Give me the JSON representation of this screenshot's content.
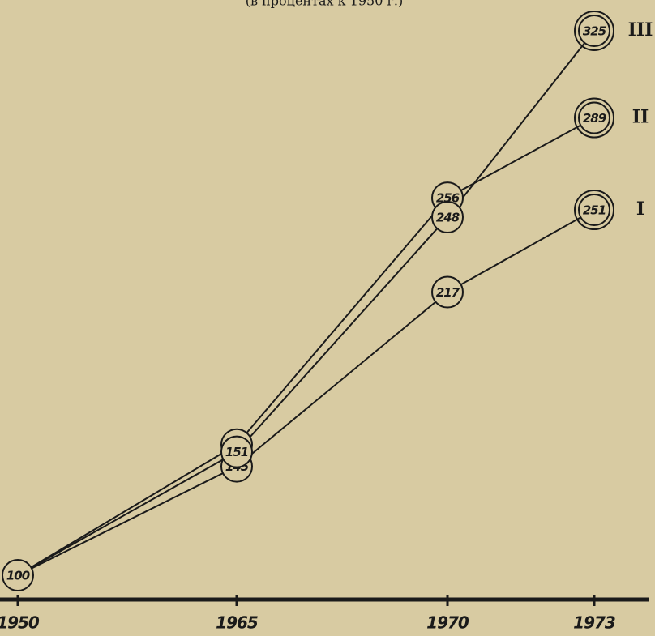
{
  "chart_data": {
    "type": "line",
    "subtitle": "(в процентах к 1950 г.)",
    "categories": [
      "1950",
      "1965",
      "1970",
      "1973"
    ],
    "series": [
      {
        "name": "I",
        "color": "#1a1a1a",
        "values": [
          100,
          145,
          217,
          251
        ]
      },
      {
        "name": "II",
        "color": "#1a1a1a",
        "values": [
          100,
          154,
          256,
          289
        ]
      },
      {
        "name": "III",
        "color": "#1a1a1a",
        "values": [
          100,
          151,
          248,
          325
        ]
      }
    ]
  }
}
